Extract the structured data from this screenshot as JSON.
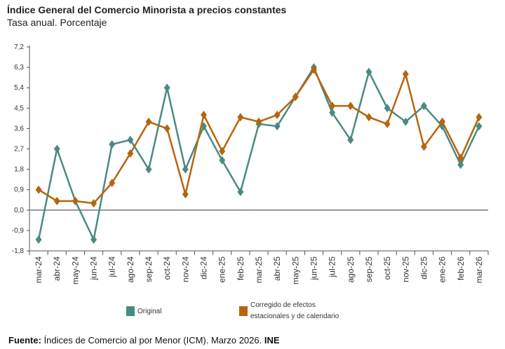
{
  "chart_data": {
    "type": "line",
    "title": "Índice General del Comercio Minorista a precios constantes",
    "subtitle": "Tasa anual. Porcentaje",
    "categories": [
      "mar-24",
      "abr-24",
      "may-24",
      "jun-24",
      "jul-24",
      "ago-24",
      "sep-24",
      "oct-24",
      "nov-24",
      "dic-24",
      "ene-25",
      "feb-25",
      "mar-25",
      "abr-25",
      "may-25",
      "jun-25",
      "jul-25",
      "ago-25",
      "sep-25",
      "oct-25",
      "nov-25",
      "dic-25",
      "ene-26",
      "feb-26",
      "mar-26"
    ],
    "series": [
      {
        "name": "Original",
        "color": "#4a8a82",
        "values": [
          -1.3,
          2.7,
          0.4,
          -1.3,
          2.9,
          3.1,
          1.8,
          5.4,
          1.8,
          3.7,
          2.2,
          0.8,
          3.8,
          3.7,
          5.0,
          6.3,
          4.3,
          3.1,
          6.1,
          4.5,
          3.9,
          4.6,
          3.7,
          2.0,
          3.7
        ]
      },
      {
        "name": "Corregido de efectos estacionales y de calendario",
        "color": "#b5650f",
        "values": [
          0.9,
          0.4,
          0.4,
          0.3,
          1.2,
          2.5,
          3.9,
          3.6,
          0.7,
          4.2,
          2.6,
          4.1,
          3.9,
          4.2,
          5.0,
          6.2,
          4.6,
          4.6,
          4.1,
          3.8,
          6.0,
          2.8,
          3.9,
          2.3,
          4.1
        ]
      }
    ],
    "ylim": [
      -1.8,
      7.2
    ],
    "yticks": [
      "-1,8",
      "-0,9",
      "0,0",
      "0,9",
      "1,8",
      "2,7",
      "3,6",
      "4,5",
      "5,4",
      "6,3",
      "7,2"
    ],
    "ytick_values": [
      -1.8,
      -0.9,
      0,
      0.9,
      1.8,
      2.7,
      3.6,
      4.5,
      5.4,
      6.3,
      7.2
    ],
    "grid": false,
    "legend_position": "bottom",
    "legend": {
      "line1_orig": "Original",
      "line1_corr": "Corregido de efectos",
      "line2_corr": "estacionales y de calendario"
    }
  },
  "source": {
    "label": "Fuente:",
    "text": " Índices de Comercio al por Menor (ICM). Marzo 2026. ",
    "org": "INE"
  }
}
